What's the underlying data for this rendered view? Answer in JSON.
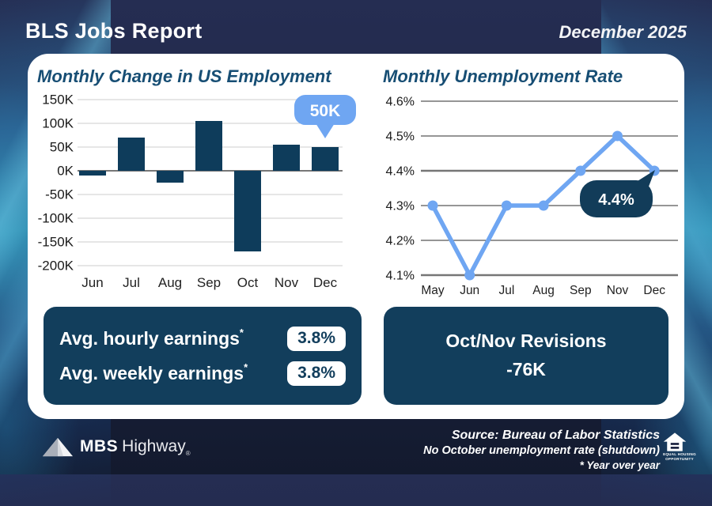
{
  "header": {
    "title": "BLS Jobs Report",
    "date": "December 2025"
  },
  "chart_data": [
    {
      "type": "bar",
      "title": "Monthly Change in US Employment",
      "categories": [
        "Jun",
        "Jul",
        "Aug",
        "Sep",
        "Oct",
        "Nov",
        "Dec"
      ],
      "values": [
        -10000,
        70000,
        -25000,
        105000,
        -170000,
        55000,
        50000
      ],
      "ylim": [
        -200000,
        150000
      ],
      "ytick_labels": [
        "150K",
        "100K",
        "50K",
        "0K",
        "-50K",
        "-100K",
        "-150K",
        "-200K"
      ],
      "annotation": {
        "label": "50K",
        "category": "Dec"
      },
      "bar_color": "#0e3c5b",
      "annotation_color": "#6fa6f2",
      "grid": true,
      "legend": "none"
    },
    {
      "type": "line",
      "title": "Monthly Unemployment Rate",
      "categories": [
        "May",
        "Jun",
        "Jul",
        "Aug",
        "Sep",
        "Nov",
        "Dec"
      ],
      "values": [
        4.3,
        4.1,
        4.3,
        4.3,
        4.4,
        4.5,
        4.4
      ],
      "ylim": [
        4.1,
        4.6
      ],
      "ytick_labels": [
        "4.6%",
        "4.5%",
        "4.4%",
        "4.3%",
        "4.2%",
        "4.1%"
      ],
      "annotation": {
        "label": "4.4%",
        "category": "Dec"
      },
      "line_color": "#6fa6f2",
      "annotation_color": "#123c59",
      "grid": true,
      "legend": "none"
    }
  ],
  "stats": {
    "rows": [
      {
        "label": "Avg. hourly earnings",
        "footnote": "*",
        "value": "3.8%"
      },
      {
        "label": "Avg. weekly earnings",
        "footnote": "*",
        "value": "3.8%"
      }
    ],
    "revisions": {
      "title": "Oct/Nov Revisions",
      "value": "-76K"
    }
  },
  "footer": {
    "brand": {
      "name_bold": "MBS",
      "name_light": "Highway",
      "registered": "®"
    },
    "source_line1": "Source: Bureau of Labor Statistics",
    "source_line2": "No October unemployment rate (shutdown)",
    "source_line3": "* Year over year",
    "equal_housing": {
      "line1": "EQUAL HOUSING",
      "line2": "OPPORTUNITY"
    }
  },
  "colors": {
    "navy_box": "#123e5c",
    "bar_navy": "#0e3c5b",
    "accent_blue": "#6fa6f2",
    "title_blue": "#174e74",
    "card_bg": "#ffffff"
  }
}
